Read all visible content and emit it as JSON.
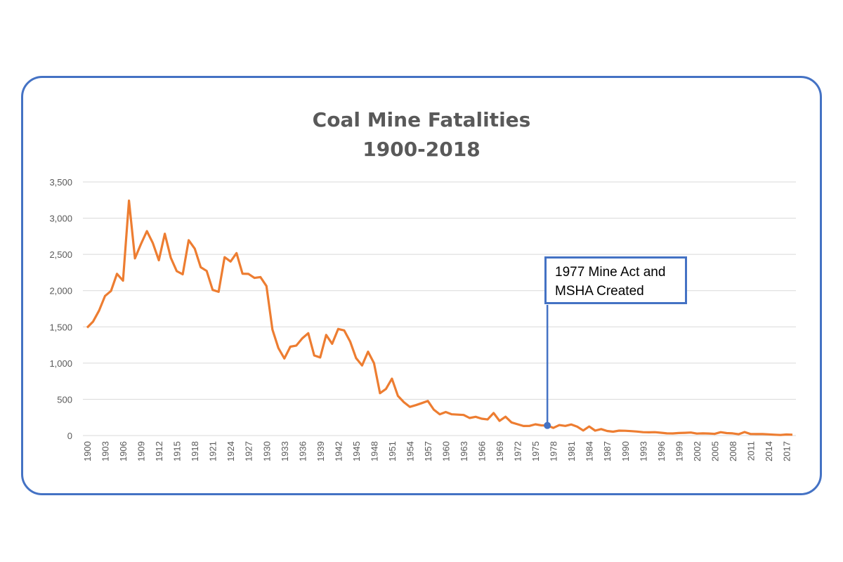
{
  "chart_data": {
    "type": "line",
    "title": [
      "Coal Mine Fatalities",
      "1900-2018"
    ],
    "xlabel": "",
    "ylabel": "",
    "ylim": [
      0,
      3500
    ],
    "y_ticks": [
      "0",
      "500",
      "1,000",
      "1,500",
      "2,000",
      "2,500",
      "3,000",
      "3,500"
    ],
    "x_tick_labels": [
      "1900",
      "1903",
      "1906",
      "1909",
      "1912",
      "1915",
      "1918",
      "1921",
      "1924",
      "1927",
      "1930",
      "1933",
      "1936",
      "1939",
      "1942",
      "1945",
      "1948",
      "1951",
      "1954",
      "1957",
      "1960",
      "1963",
      "1966",
      "1969",
      "1972",
      "1975",
      "1978",
      "1981",
      "1984",
      "1987",
      "1990",
      "1993",
      "1996",
      "1999",
      "2002",
      "2005",
      "2008",
      "2011",
      "2014",
      "2017"
    ],
    "grid": true,
    "line_color": "#ED7D31",
    "x": [
      1900,
      1901,
      1902,
      1903,
      1904,
      1905,
      1906,
      1907,
      1908,
      1909,
      1910,
      1911,
      1912,
      1913,
      1914,
      1915,
      1916,
      1917,
      1918,
      1919,
      1920,
      1921,
      1922,
      1923,
      1924,
      1925,
      1926,
      1927,
      1928,
      1929,
      1930,
      1931,
      1932,
      1933,
      1934,
      1935,
      1936,
      1937,
      1938,
      1939,
      1940,
      1941,
      1942,
      1943,
      1944,
      1945,
      1946,
      1947,
      1948,
      1949,
      1950,
      1951,
      1952,
      1953,
      1954,
      1955,
      1956,
      1957,
      1958,
      1959,
      1960,
      1961,
      1962,
      1963,
      1964,
      1965,
      1966,
      1967,
      1968,
      1969,
      1970,
      1971,
      1972,
      1973,
      1974,
      1975,
      1976,
      1977,
      1978,
      1979,
      1980,
      1981,
      1982,
      1983,
      1984,
      1985,
      1986,
      1987,
      1988,
      1989,
      1990,
      1991,
      1992,
      1993,
      1994,
      1995,
      1996,
      1997,
      1998,
      1999,
      2000,
      2001,
      2002,
      2003,
      2004,
      2005,
      2006,
      2007,
      2008,
      2009,
      2010,
      2011,
      2012,
      2013,
      2014,
      2015,
      2016,
      2017,
      2018
    ],
    "values": [
      1489,
      1574,
      1724,
      1926,
      1995,
      2232,
      2138,
      3242,
      2445,
      2642,
      2821,
      2656,
      2419,
      2785,
      2454,
      2269,
      2226,
      2696,
      2580,
      2323,
      2272,
      2010,
      1984,
      2462,
      2402,
      2518,
      2234,
      2231,
      2176,
      2187,
      2063,
      1463,
      1207,
      1064,
      1226,
      1242,
      1342,
      1413,
      1105,
      1078,
      1388,
      1266,
      1471,
      1451,
      1298,
      1068,
      968,
      1158,
      999,
      585,
      643,
      785,
      548,
      461,
      396,
      420,
      448,
      478,
      358,
      293,
      325,
      294,
      289,
      284,
      242,
      259,
      233,
      222,
      311,
      203,
      260,
      181,
      156,
      132,
      133,
      155,
      141,
      139,
      106,
      144,
      133,
      153,
      122,
      70,
      125,
      68,
      89,
      63,
      53,
      68,
      66,
      61,
      55,
      47,
      45,
      47,
      39,
      30,
      29,
      35,
      38,
      42,
      27,
      30,
      28,
      23,
      47,
      34,
      30,
      18,
      48,
      21,
      20,
      20,
      16,
      12,
      8,
      15,
      12
    ],
    "annotation": {
      "year": 1977,
      "value": 139,
      "text": [
        "1977 Mine Act and",
        "MSHA Created"
      ],
      "color": "#4472C4"
    }
  }
}
